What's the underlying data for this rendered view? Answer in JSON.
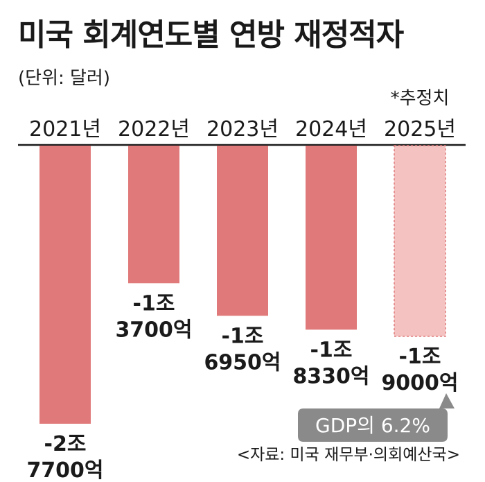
{
  "header": {
    "title": "미국 회계연도별 연방 재정적자",
    "unit": "(단위: 달러)"
  },
  "estimate_note": "*추정치",
  "callout": {
    "text": "GDP의 6.2%"
  },
  "source": "<자료: 미국 재무부·의회예산국>",
  "colors": {
    "bar": "#e07a7a",
    "bar_estimate": "#f4c3c1",
    "bar_estimate_border": "#e07a7a",
    "axis": "#1a1a1a",
    "callout_bg": "#8a8a8a"
  },
  "chart_data": {
    "type": "bar",
    "categories": [
      "2021년",
      "2022년",
      "2023년",
      "2024년",
      "2025년"
    ],
    "values": [
      -2.77,
      -1.37,
      -1.695,
      -1.833,
      -1.9
    ],
    "value_labels": [
      [
        "-2조",
        "7700억"
      ],
      [
        "-1조",
        "3700억"
      ],
      [
        "-1조",
        "6950억"
      ],
      [
        "-1조",
        "8330억"
      ],
      [
        "-1조",
        "9000억"
      ]
    ],
    "estimated": [
      false,
      false,
      false,
      false,
      true
    ],
    "ylim": [
      -3.15,
      0
    ],
    "title": "미국 회계연도별 연방 재정적자",
    "xlabel": "",
    "ylabel": "",
    "grid": false
  }
}
